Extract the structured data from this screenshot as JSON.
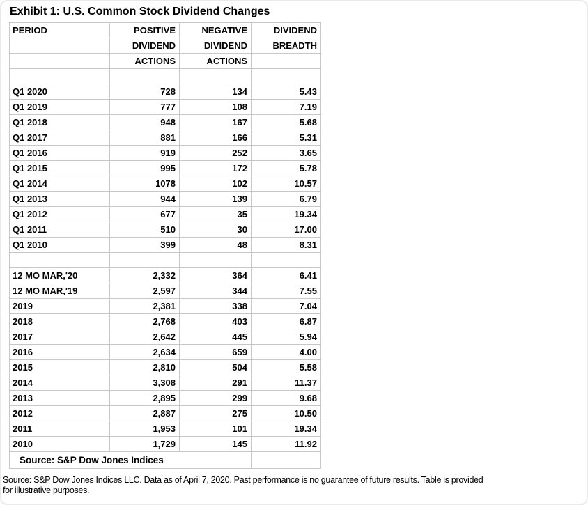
{
  "title": "Exhibit 1: U.S. Common Stock Dividend Changes",
  "table": {
    "header_rows": [
      [
        "PERIOD",
        "POSITIVE",
        "NEGATIVE",
        "DIVIDEND"
      ],
      [
        "",
        "DIVIDEND",
        "DIVIDEND",
        "BREADTH"
      ],
      [
        "",
        "ACTIONS",
        "ACTIONS",
        ""
      ]
    ],
    "sections": [
      {
        "name": "quarterly",
        "rows": [
          [
            "Q1 2020",
            "728",
            "134",
            "5.43"
          ],
          [
            "Q1 2019",
            "777",
            "108",
            "7.19"
          ],
          [
            "Q1 2018",
            "948",
            "167",
            "5.68"
          ],
          [
            "Q1 2017",
            "881",
            "166",
            "5.31"
          ],
          [
            "Q1 2016",
            "919",
            "252",
            "3.65"
          ],
          [
            "Q1 2015",
            "995",
            "172",
            "5.78"
          ],
          [
            "Q1 2014",
            "1078",
            "102",
            "10.57"
          ],
          [
            "Q1 2013",
            "944",
            "139",
            "6.79"
          ],
          [
            "Q1 2012",
            "677",
            "35",
            "19.34"
          ],
          [
            "Q1 2011",
            "510",
            "30",
            "17.00"
          ],
          [
            "Q1 2010",
            "399",
            "48",
            "8.31"
          ]
        ]
      },
      {
        "name": "annual",
        "rows": [
          [
            "12 MO MAR,'20",
            "2,332",
            "364",
            "6.41"
          ],
          [
            "12 MO MAR,'19",
            "2,597",
            "344",
            "7.55"
          ],
          [
            "2019",
            "2,381",
            "338",
            "7.04"
          ],
          [
            "2018",
            "2,768",
            "403",
            "6.87"
          ],
          [
            "2017",
            "2,642",
            "445",
            "5.94"
          ],
          [
            "2016",
            "2,634",
            "659",
            "4.00"
          ],
          [
            "2015",
            "2,810",
            "504",
            "5.58"
          ],
          [
            "2014",
            "3,308",
            "291",
            "11.37"
          ],
          [
            "2013",
            "2,895",
            "299",
            "9.68"
          ],
          [
            "2012",
            "2,887",
            "275",
            "10.50"
          ],
          [
            "2011",
            "1,953",
            "101",
            "19.34"
          ],
          [
            "2010",
            "1,729",
            "145",
            "11.92"
          ]
        ]
      }
    ],
    "footer": "Source: S&P Dow Jones Indices"
  },
  "disclaimer": {
    "line1": "Source: S&P Dow Jones Indices LLC. Data as of April 7, 2020. Past performance is no guarantee of future results. Table is provided",
    "line2": "for illustrative purposes."
  },
  "colors": {
    "grid_border": "#c8c8c8",
    "outer_frame": "#e9e9eb",
    "text": "#000000",
    "background": "#ffffff"
  },
  "chart_data": {
    "type": "table",
    "title": "Exhibit 1: U.S. Common Stock Dividend Changes",
    "columns": [
      "PERIOD",
      "POSITIVE DIVIDEND ACTIONS",
      "NEGATIVE DIVIDEND ACTIONS",
      "DIVIDEND BREADTH"
    ],
    "rows": [
      [
        "Q1 2020",
        728,
        134,
        5.43
      ],
      [
        "Q1 2019",
        777,
        108,
        7.19
      ],
      [
        "Q1 2018",
        948,
        167,
        5.68
      ],
      [
        "Q1 2017",
        881,
        166,
        5.31
      ],
      [
        "Q1 2016",
        919,
        252,
        3.65
      ],
      [
        "Q1 2015",
        995,
        172,
        5.78
      ],
      [
        "Q1 2014",
        1078,
        102,
        10.57
      ],
      [
        "Q1 2013",
        944,
        139,
        6.79
      ],
      [
        "Q1 2012",
        677,
        35,
        19.34
      ],
      [
        "Q1 2011",
        510,
        30,
        17.0
      ],
      [
        "Q1 2010",
        399,
        48,
        8.31
      ],
      [
        "12 MO MAR,'20",
        2332,
        364,
        6.41
      ],
      [
        "12 MO MAR,'19",
        2597,
        344,
        7.55
      ],
      [
        "2019",
        2381,
        338,
        7.04
      ],
      [
        "2018",
        2768,
        403,
        6.87
      ],
      [
        "2017",
        2642,
        445,
        5.94
      ],
      [
        "2016",
        2634,
        659,
        4.0
      ],
      [
        "2015",
        2810,
        504,
        5.58
      ],
      [
        "2014",
        3308,
        291,
        11.37
      ],
      [
        "2013",
        2895,
        299,
        9.68
      ],
      [
        "2012",
        2887,
        275,
        10.5
      ],
      [
        "2011",
        1953,
        101,
        19.34
      ],
      [
        "2010",
        1729,
        145,
        11.92
      ]
    ],
    "source": "Source: S&P Dow Jones Indices"
  }
}
